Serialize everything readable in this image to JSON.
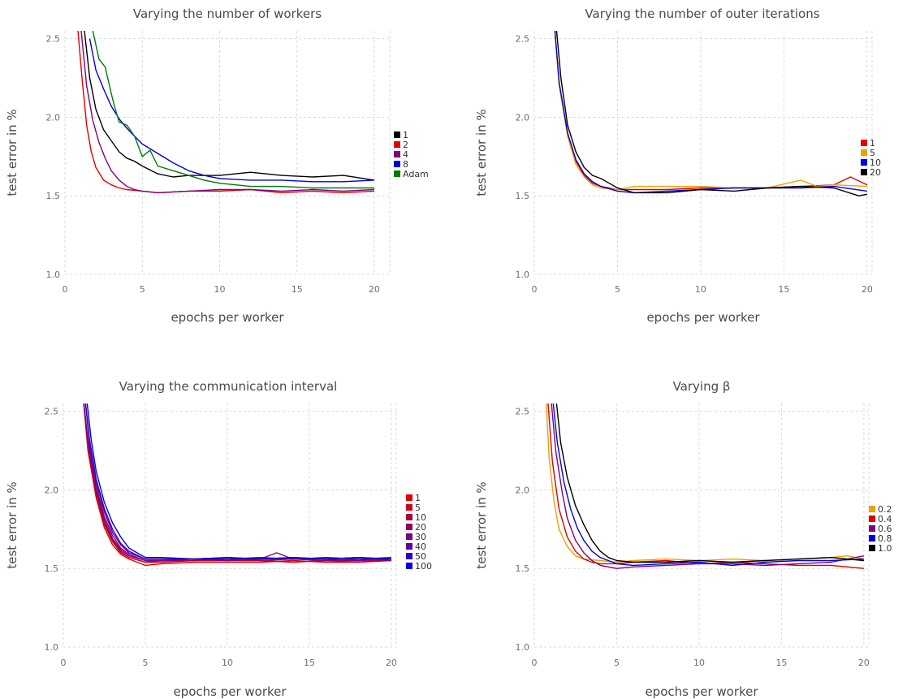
{
  "chart_data": [
    {
      "type": "line",
      "title": "Varying the number of workers",
      "xlabel": "epochs per worker",
      "ylabel": "test error in %",
      "xlim": [
        0,
        21
      ],
      "ylim": [
        1.0,
        2.55
      ],
      "xticks": [
        "0",
        "5",
        "10",
        "15",
        "20"
      ],
      "yticks": [
        "1.0",
        "1.5",
        "2.0",
        "2.5"
      ],
      "grid": true,
      "legend_position": "right",
      "series": [
        {
          "name": "1",
          "color": "#000000",
          "x": [
            1.2,
            1.6,
            2.0,
            2.5,
            3.0,
            3.5,
            4.0,
            4.5,
            5.0,
            6.0,
            7.0,
            8.0,
            10.0,
            12.0,
            14.0,
            16.0,
            18.0,
            20.0
          ],
          "y": [
            2.6,
            2.25,
            2.05,
            1.92,
            1.85,
            1.78,
            1.74,
            1.72,
            1.69,
            1.64,
            1.62,
            1.63,
            1.63,
            1.65,
            1.63,
            1.62,
            1.63,
            1.6
          ]
        },
        {
          "name": "2",
          "color": "#e00000",
          "x": [
            0.8,
            1.1,
            1.4,
            1.7,
            2.0,
            2.5,
            3.0,
            3.5,
            4.0,
            5.0,
            6.0,
            8.0,
            10.0,
            12.0,
            14.0,
            16.0,
            18.0,
            20.0
          ],
          "y": [
            2.6,
            2.25,
            1.95,
            1.78,
            1.68,
            1.6,
            1.57,
            1.55,
            1.54,
            1.53,
            1.52,
            1.53,
            1.53,
            1.54,
            1.52,
            1.53,
            1.52,
            1.53
          ]
        },
        {
          "name": "4",
          "color": "#800080",
          "x": [
            1.0,
            1.4,
            1.8,
            2.2,
            2.6,
            3.0,
            3.5,
            4.0,
            4.5,
            5.0,
            6.0,
            8.0,
            10.0,
            12.0,
            14.0,
            16.0,
            18.0,
            20.0
          ],
          "y": [
            2.6,
            2.2,
            1.98,
            1.84,
            1.74,
            1.66,
            1.6,
            1.56,
            1.54,
            1.53,
            1.52,
            1.53,
            1.54,
            1.54,
            1.53,
            1.54,
            1.53,
            1.54
          ]
        },
        {
          "name": "8",
          "color": "#0000e0",
          "x": [
            1.6,
            2.0,
            2.5,
            3.0,
            3.5,
            4.0,
            4.5,
            5.0,
            6.0,
            7.0,
            8.0,
            9.0,
            10.0,
            12.0,
            14.0,
            16.0,
            18.0,
            20.0
          ],
          "y": [
            2.5,
            2.3,
            2.18,
            2.07,
            1.99,
            1.93,
            1.88,
            1.83,
            1.77,
            1.71,
            1.66,
            1.63,
            1.61,
            1.6,
            1.6,
            1.59,
            1.59,
            1.6
          ]
        },
        {
          "name": "Adam",
          "color": "#007a00",
          "x": [
            1.8,
            2.2,
            2.6,
            3.0,
            3.2,
            3.5,
            4.0,
            4.5,
            5.0,
            5.5,
            6.0,
            7.0,
            8.0,
            9.0,
            10.0,
            12.0,
            14.0,
            16.0,
            18.0,
            20.0
          ],
          "y": [
            2.55,
            2.37,
            2.32,
            2.15,
            2.07,
            1.97,
            1.95,
            1.88,
            1.75,
            1.79,
            1.69,
            1.66,
            1.63,
            1.6,
            1.58,
            1.56,
            1.56,
            1.55,
            1.55,
            1.55
          ]
        }
      ]
    },
    {
      "type": "line",
      "title": "Varying the number of outer iterations",
      "xlabel": "epochs per worker",
      "ylabel": "test error in %",
      "xlim": [
        0,
        20.3
      ],
      "ylim": [
        1.0,
        2.55
      ],
      "xticks": [
        "0",
        "5",
        "10",
        "15",
        "20"
      ],
      "yticks": [
        "1.0",
        "1.5",
        "2.0",
        "2.5"
      ],
      "grid": true,
      "legend_position": "right",
      "series": [
        {
          "name": "1",
          "color": "#e00000",
          "x": [
            1.2,
            1.5,
            2.0,
            2.5,
            3.0,
            3.5,
            4.0,
            5.0,
            6.0,
            8.0,
            10.0,
            12.0,
            14.0,
            16.0,
            18.0,
            19.0,
            20.0
          ],
          "y": [
            2.6,
            2.2,
            1.9,
            1.72,
            1.63,
            1.58,
            1.56,
            1.54,
            1.54,
            1.54,
            1.55,
            1.55,
            1.55,
            1.56,
            1.57,
            1.62,
            1.57
          ]
        },
        {
          "name": "5",
          "color": "#f0a000",
          "x": [
            1.2,
            1.5,
            2.0,
            2.5,
            3.0,
            3.5,
            4.0,
            5.0,
            6.0,
            8.0,
            10.0,
            12.0,
            14.0,
            16.0,
            17.0,
            18.0,
            20.0
          ],
          "y": [
            2.6,
            2.2,
            1.88,
            1.7,
            1.62,
            1.57,
            1.55,
            1.54,
            1.56,
            1.56,
            1.56,
            1.55,
            1.55,
            1.6,
            1.56,
            1.57,
            1.56
          ]
        },
        {
          "name": "10",
          "color": "#0000e0",
          "x": [
            1.2,
            1.5,
            2.0,
            2.5,
            3.0,
            3.5,
            4.0,
            5.0,
            6.0,
            8.0,
            10.0,
            12.0,
            14.0,
            16.0,
            18.0,
            20.0
          ],
          "y": [
            2.6,
            2.22,
            1.9,
            1.73,
            1.64,
            1.59,
            1.56,
            1.53,
            1.52,
            1.53,
            1.54,
            1.55,
            1.55,
            1.55,
            1.56,
            1.53
          ]
        },
        {
          "name": "20",
          "color": "#000000",
          "x": [
            1.3,
            1.6,
            2.0,
            2.5,
            3.0,
            3.5,
            4.0,
            4.5,
            5.0,
            6.0,
            8.0,
            10.0,
            12.0,
            14.0,
            16.0,
            18.0,
            19.5,
            20.0
          ],
          "y": [
            2.6,
            2.25,
            1.95,
            1.78,
            1.68,
            1.63,
            1.61,
            1.58,
            1.55,
            1.52,
            1.52,
            1.54,
            1.53,
            1.55,
            1.56,
            1.55,
            1.5,
            1.51
          ]
        }
      ]
    },
    {
      "type": "line",
      "title": "Varying the communication interval",
      "xlabel": "epochs per worker",
      "ylabel": "test error in %",
      "xlim": [
        0,
        20.3
      ],
      "ylim": [
        1.0,
        2.55
      ],
      "xticks": [
        "0",
        "5",
        "10",
        "15",
        "20"
      ],
      "yticks": [
        "1.0",
        "1.5",
        "2.0",
        "2.5"
      ],
      "grid": true,
      "legend_position": "right",
      "series": [
        {
          "name": "1",
          "color": "#e00000",
          "x": [
            1.2,
            1.5,
            2.0,
            2.5,
            3.0,
            3.5,
            4.0,
            5.0,
            6.0,
            8.0,
            10.0,
            12.0,
            14.0,
            16.0,
            18.0,
            20.0
          ],
          "y": [
            2.6,
            2.25,
            1.95,
            1.76,
            1.65,
            1.59,
            1.56,
            1.52,
            1.53,
            1.54,
            1.54,
            1.54,
            1.55,
            1.54,
            1.54,
            1.56
          ]
        },
        {
          "name": "5",
          "color": "#d00018",
          "x": [
            1.2,
            1.5,
            2.0,
            2.5,
            3.0,
            3.5,
            4.0,
            5.0,
            6.0,
            8.0,
            10.0,
            12.0,
            14.0,
            16.0,
            18.0,
            20.0
          ],
          "y": [
            2.6,
            2.27,
            1.97,
            1.78,
            1.67,
            1.6,
            1.57,
            1.54,
            1.54,
            1.55,
            1.55,
            1.55,
            1.54,
            1.55,
            1.54,
            1.55
          ]
        },
        {
          "name": "10",
          "color": "#b00038",
          "x": [
            1.2,
            1.5,
            2.0,
            2.5,
            3.0,
            3.5,
            4.0,
            5.0,
            6.0,
            8.0,
            10.0,
            12.0,
            14.0,
            16.0,
            18.0,
            20.0
          ],
          "y": [
            2.6,
            2.28,
            1.98,
            1.79,
            1.68,
            1.61,
            1.57,
            1.54,
            1.55,
            1.55,
            1.56,
            1.55,
            1.56,
            1.55,
            1.55,
            1.56
          ]
        },
        {
          "name": "20",
          "color": "#900060",
          "x": [
            1.2,
            1.5,
            2.0,
            2.5,
            3.0,
            3.5,
            4.0,
            5.0,
            6.0,
            8.0,
            10.0,
            12.0,
            14.0,
            16.0,
            18.0,
            20.0
          ],
          "y": [
            2.6,
            2.3,
            2.0,
            1.81,
            1.69,
            1.62,
            1.58,
            1.55,
            1.55,
            1.56,
            1.55,
            1.56,
            1.56,
            1.55,
            1.56,
            1.55
          ]
        },
        {
          "name": "30",
          "color": "#800080",
          "x": [
            1.2,
            1.5,
            2.0,
            2.5,
            3.0,
            3.5,
            4.0,
            5.0,
            6.0,
            8.0,
            10.0,
            12.0,
            13.0,
            14.0,
            16.0,
            18.0,
            20.0
          ],
          "y": [
            2.6,
            2.32,
            2.02,
            1.83,
            1.71,
            1.63,
            1.59,
            1.55,
            1.55,
            1.56,
            1.56,
            1.56,
            1.6,
            1.56,
            1.56,
            1.55,
            1.56
          ]
        },
        {
          "name": "40",
          "color": "#6000a0",
          "x": [
            1.3,
            1.6,
            2.0,
            2.5,
            3.0,
            3.5,
            4.0,
            5.0,
            6.0,
            8.0,
            10.0,
            12.0,
            14.0,
            16.0,
            18.0,
            20.0
          ],
          "y": [
            2.6,
            2.3,
            2.05,
            1.86,
            1.73,
            1.65,
            1.6,
            1.56,
            1.56,
            1.56,
            1.57,
            1.56,
            1.57,
            1.56,
            1.57,
            1.56
          ]
        },
        {
          "name": "50",
          "color": "#3000c8",
          "x": [
            1.3,
            1.6,
            2.0,
            2.5,
            3.0,
            3.5,
            4.0,
            5.0,
            6.0,
            8.0,
            10.0,
            12.0,
            14.0,
            16.0,
            18.0,
            20.0
          ],
          "y": [
            2.6,
            2.32,
            2.07,
            1.88,
            1.75,
            1.66,
            1.61,
            1.56,
            1.56,
            1.56,
            1.56,
            1.57,
            1.56,
            1.57,
            1.56,
            1.57
          ]
        },
        {
          "name": "100",
          "color": "#0000e0",
          "x": [
            1.4,
            1.7,
            2.0,
            2.5,
            3.0,
            3.5,
            4.0,
            5.0,
            6.0,
            8.0,
            10.0,
            12.0,
            14.0,
            16.0,
            18.0,
            20.0
          ],
          "y": [
            2.6,
            2.32,
            2.12,
            1.92,
            1.79,
            1.7,
            1.63,
            1.57,
            1.57,
            1.56,
            1.57,
            1.56,
            1.57,
            1.56,
            1.57,
            1.56
          ]
        }
      ]
    },
    {
      "type": "line",
      "title": "Varying β",
      "xlabel": "epochs per worker",
      "ylabel": "test error in %",
      "xlim": [
        0,
        20.3
      ],
      "ylim": [
        1.0,
        2.55
      ],
      "xticks": [
        "0",
        "5",
        "10",
        "15",
        "20"
      ],
      "yticks": [
        "1.0",
        "1.5",
        "2.0",
        "2.5"
      ],
      "grid": true,
      "legend_position": "right",
      "series": [
        {
          "name": "0.2",
          "color": "#f0a000",
          "x": [
            0.7,
            0.9,
            1.2,
            1.5,
            2.0,
            2.5,
            3.0,
            4.0,
            5.0,
            6.0,
            8.0,
            10.0,
            12.0,
            14.0,
            16.0,
            18.0,
            19.0,
            20.0
          ],
          "y": [
            2.6,
            2.2,
            1.92,
            1.75,
            1.64,
            1.58,
            1.56,
            1.55,
            1.54,
            1.55,
            1.56,
            1.55,
            1.56,
            1.55,
            1.56,
            1.57,
            1.58,
            1.56
          ]
        },
        {
          "name": "0.4",
          "color": "#e00000",
          "x": [
            0.8,
            1.1,
            1.5,
            2.0,
            2.5,
            3.0,
            3.5,
            4.0,
            5.0,
            6.0,
            8.0,
            10.0,
            12.0,
            14.0,
            16.0,
            18.0,
            20.0
          ],
          "y": [
            2.6,
            2.18,
            1.88,
            1.7,
            1.61,
            1.56,
            1.54,
            1.53,
            1.53,
            1.54,
            1.55,
            1.53,
            1.54,
            1.53,
            1.52,
            1.52,
            1.5
          ]
        },
        {
          "name": "0.6",
          "color": "#800080",
          "x": [
            1.0,
            1.3,
            1.7,
            2.0,
            2.5,
            3.0,
            3.5,
            4.0,
            5.0,
            6.0,
            8.0,
            10.0,
            12.0,
            14.0,
            16.0,
            18.0,
            20.0
          ],
          "y": [
            2.6,
            2.25,
            1.98,
            1.82,
            1.68,
            1.6,
            1.55,
            1.52,
            1.5,
            1.51,
            1.52,
            1.53,
            1.53,
            1.52,
            1.53,
            1.54,
            1.58
          ]
        },
        {
          "name": "0.8",
          "color": "#0000e0",
          "x": [
            1.1,
            1.4,
            1.8,
            2.2,
            2.6,
            3.0,
            3.5,
            4.0,
            4.5,
            5.0,
            6.0,
            8.0,
            10.0,
            12.0,
            14.0,
            16.0,
            18.0,
            20.0
          ],
          "y": [
            2.6,
            2.3,
            2.05,
            1.88,
            1.76,
            1.68,
            1.61,
            1.57,
            1.55,
            1.53,
            1.52,
            1.53,
            1.54,
            1.52,
            1.54,
            1.55,
            1.55,
            1.56
          ]
        },
        {
          "name": "1.0",
          "color": "#000000",
          "x": [
            1.3,
            1.6,
            2.0,
            2.5,
            3.0,
            3.5,
            4.0,
            4.5,
            5.0,
            6.0,
            8.0,
            10.0,
            12.0,
            14.0,
            16.0,
            18.0,
            20.0
          ],
          "y": [
            2.6,
            2.3,
            2.08,
            1.9,
            1.78,
            1.68,
            1.61,
            1.57,
            1.55,
            1.54,
            1.54,
            1.55,
            1.54,
            1.55,
            1.56,
            1.57,
            1.55
          ]
        }
      ]
    }
  ]
}
